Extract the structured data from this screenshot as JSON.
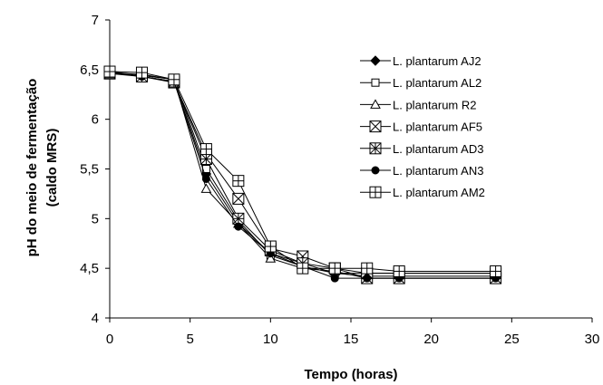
{
  "chart_data": {
    "type": "line",
    "title": "",
    "xlabel": "Tempo (horas)",
    "ylabel_lines": [
      "pH do meio de fermentação",
      "(caldo MRS)"
    ],
    "xlim": [
      0,
      30
    ],
    "ylim": [
      4,
      7
    ],
    "xticks": [
      0,
      5,
      10,
      15,
      20,
      25,
      30
    ],
    "yticks": [
      4,
      4.5,
      5,
      5.5,
      6,
      6.5,
      7
    ],
    "xtick_labels": [
      "0",
      "5",
      "10",
      "15",
      "20",
      "25",
      "30"
    ],
    "ytick_labels": [
      "4",
      "4,5",
      "5",
      "5,5",
      "6",
      "6,5",
      "7"
    ],
    "grid": false,
    "legend_position": "right",
    "x": [
      0,
      2,
      4,
      6,
      8,
      10,
      12,
      14,
      16,
      18,
      24
    ],
    "series": [
      {
        "name": "L. plantarum AJ2",
        "marker": "diamond-filled",
        "values": [
          6.47,
          6.43,
          6.38,
          5.45,
          4.95,
          4.65,
          4.55,
          4.45,
          4.42,
          4.42,
          4.42
        ]
      },
      {
        "name": "L. plantarum AL2",
        "marker": "square-open",
        "values": [
          6.48,
          6.44,
          6.4,
          5.5,
          4.98,
          4.63,
          4.52,
          4.45,
          4.45,
          4.45,
          4.45
        ]
      },
      {
        "name": "L. plantarum R2",
        "marker": "triangle-open",
        "values": [
          6.47,
          6.45,
          6.4,
          5.3,
          4.95,
          4.6,
          4.5,
          4.47,
          4.4,
          4.4,
          4.4
        ]
      },
      {
        "name": "L. plantarum AF5",
        "marker": "square-x",
        "values": [
          6.46,
          6.43,
          6.37,
          5.65,
          5.2,
          4.7,
          4.62,
          4.5,
          4.4,
          4.4,
          4.4
        ]
      },
      {
        "name": "L. plantarum AD3",
        "marker": "square-star",
        "values": [
          6.47,
          6.43,
          6.38,
          5.6,
          5.0,
          4.68,
          4.55,
          4.5,
          4.45,
          4.45,
          4.45
        ]
      },
      {
        "name": "L. plantarum AN3",
        "marker": "circle-filled",
        "values": [
          6.47,
          6.43,
          6.38,
          5.4,
          4.92,
          4.65,
          4.52,
          4.4,
          4.4,
          4.4,
          4.4
        ]
      },
      {
        "name": "L. plantarum AM2",
        "marker": "square-plus",
        "values": [
          6.48,
          6.47,
          6.4,
          5.7,
          5.38,
          4.72,
          4.5,
          4.5,
          4.5,
          4.47,
          4.47
        ]
      }
    ]
  }
}
